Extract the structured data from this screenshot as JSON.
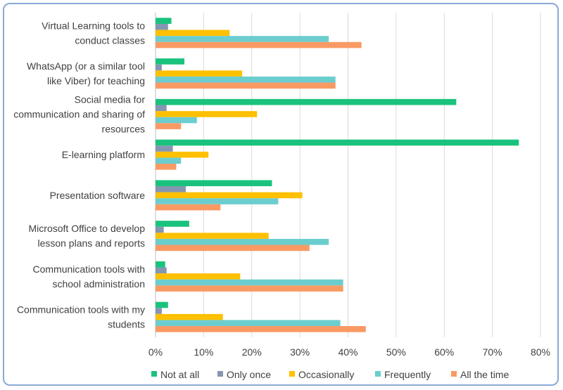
{
  "chart_data": {
    "type": "bar",
    "orientation": "horizontal",
    "title": "",
    "xlabel": "",
    "ylabel": "",
    "xlim": [
      0,
      80
    ],
    "x_ticks": [
      "0%",
      "10%",
      "20%",
      "30%",
      "40%",
      "50%",
      "60%",
      "70%",
      "80%"
    ],
    "grid": true,
    "legend_position": "bottom",
    "categories": [
      [
        "Virtual Learning tools to",
        "conduct classes"
      ],
      [
        "WhatsApp (or a similar tool",
        "like Viber) for teaching"
      ],
      [
        "Social media for",
        "communication and sharing of",
        "resources"
      ],
      [
        "E-learning platform"
      ],
      [
        "Presentation software"
      ],
      [
        "Microsoft Office to develop",
        "lesson plans and reports"
      ],
      [
        "Communication tools with",
        "school administration"
      ],
      [
        "Communication tools with my",
        "students"
      ]
    ],
    "series": [
      {
        "name": "Not at all",
        "color": "#19c37d",
        "values": [
          3.3,
          6.0,
          62.5,
          75.5,
          24.2,
          7.0,
          2.0,
          2.6
        ]
      },
      {
        "name": "Only once",
        "color": "#8496b0",
        "values": [
          2.6,
          1.3,
          2.3,
          3.6,
          6.3,
          1.7,
          2.3,
          1.3
        ]
      },
      {
        "name": "Occasionally",
        "color": "#ffc000",
        "values": [
          15.4,
          18.0,
          21.1,
          11.0,
          30.5,
          23.5,
          17.6,
          14.0
        ]
      },
      {
        "name": "Frequently",
        "color": "#6ccdce",
        "values": [
          36.0,
          37.4,
          8.6,
          5.3,
          25.5,
          36.0,
          39.0,
          38.4
        ]
      },
      {
        "name": "All the time",
        "color": "#f99a64",
        "values": [
          42.8,
          37.4,
          5.3,
          4.3,
          13.5,
          32.0,
          39.0,
          43.7
        ]
      }
    ]
  }
}
